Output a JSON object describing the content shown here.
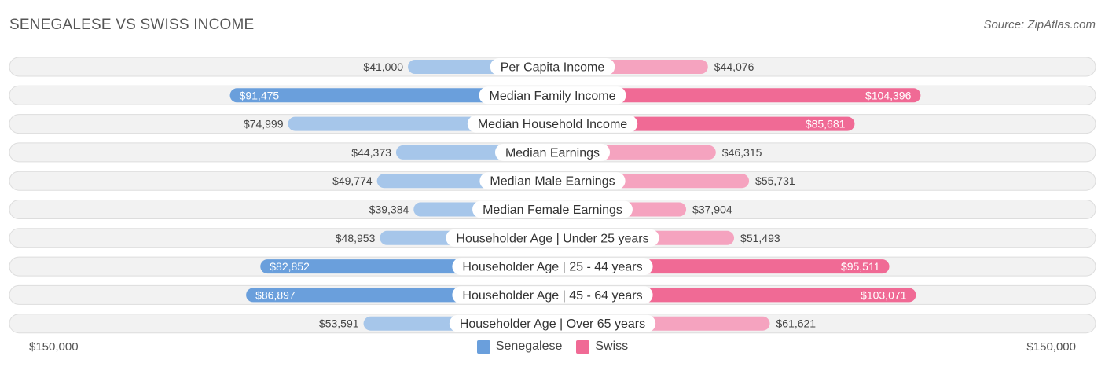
{
  "title": "SENEGALESE VS SWISS INCOME",
  "source": "Source: ZipAtlas.com",
  "colors": {
    "senegalese_strong": "#6a9fdc",
    "senegalese_light": "#a6c6ea",
    "swiss_strong": "#f06a95",
    "swiss_light": "#f5a3bf",
    "row_bg": "#f2f2f2",
    "row_border": "#dddddd"
  },
  "chart_data": {
    "type": "bar",
    "orientation": "horizontal-diverging",
    "title": "SENEGALESE VS SWISS INCOME",
    "categories": [
      "Per Capita Income",
      "Median Family Income",
      "Median Household Income",
      "Median Earnings",
      "Median Male Earnings",
      "Median Female Earnings",
      "Householder Age | Under 25 years",
      "Householder Age | 25 - 44 years",
      "Householder Age | 45 - 64 years",
      "Householder Age | Over 65 years"
    ],
    "series": [
      {
        "name": "Senegalese",
        "side": "left",
        "values": [
          41000,
          91475,
          74999,
          44373,
          49774,
          39384,
          48953,
          82852,
          86897,
          53591
        ],
        "labels": [
          "$41,000",
          "$91,475",
          "$74,999",
          "$44,373",
          "$49,774",
          "$39,384",
          "$48,953",
          "$82,852",
          "$86,897",
          "$53,591"
        ]
      },
      {
        "name": "Swiss",
        "side": "right",
        "values": [
          44076,
          104396,
          85681,
          46315,
          55731,
          37904,
          51493,
          95511,
          103071,
          61621
        ],
        "labels": [
          "$44,076",
          "$104,396",
          "$85,681",
          "$46,315",
          "$55,731",
          "$37,904",
          "$51,493",
          "$95,511",
          "$103,071",
          "$61,621"
        ]
      }
    ],
    "xlim": [
      0,
      150000
    ],
    "axis_left_label": "$150,000",
    "axis_right_label": "$150,000",
    "legend_position": "bottom-center"
  }
}
